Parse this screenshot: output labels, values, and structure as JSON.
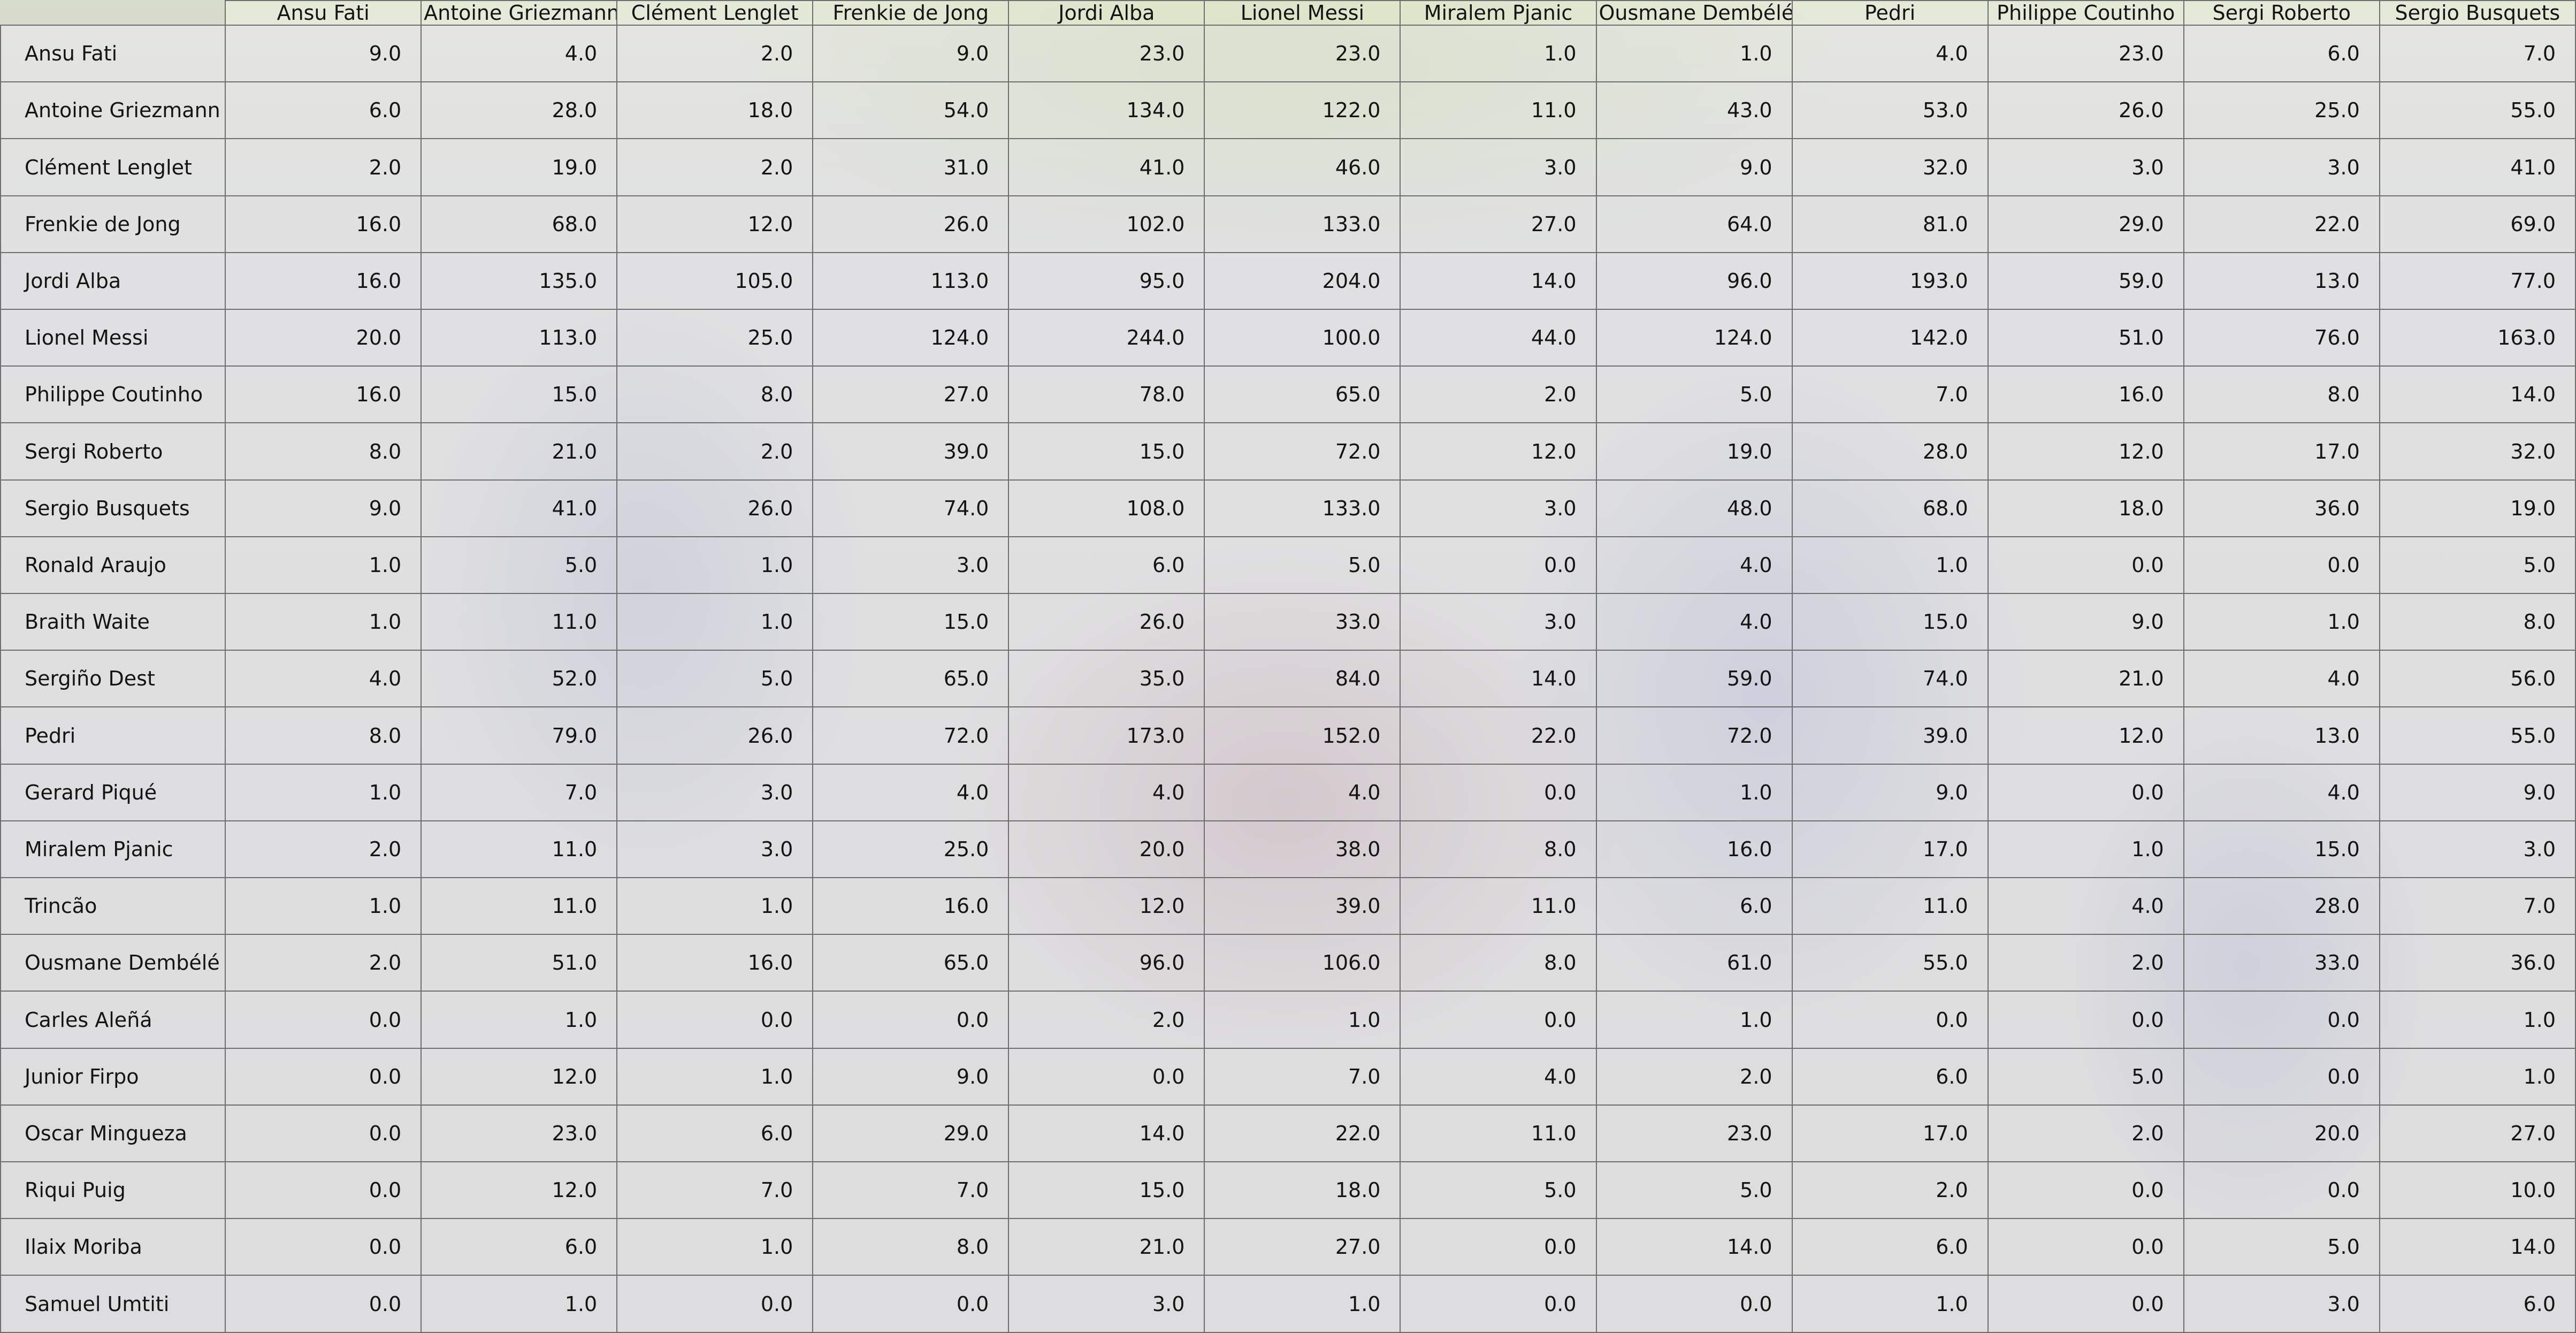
{
  "chart_data": {
    "type": "table",
    "title": "",
    "columns": [
      "Ansu Fati",
      "Antoine Griezmann",
      "Clément Lenglet",
      "Frenkie de Jong",
      "Jordi Alba",
      "Lionel Messi",
      "Miralem Pjanic",
      "Ousmane Dembélé",
      "Pedri",
      "Philippe Coutinho",
      "Sergi Roberto",
      "Sergio Busquets"
    ],
    "rows": [
      {
        "label": "Ansu Fati",
        "values": [
          "9.0",
          "4.0",
          "2.0",
          "9.0",
          "23.0",
          "23.0",
          "1.0",
          "1.0",
          "4.0",
          "23.0",
          "6.0",
          "7.0"
        ]
      },
      {
        "label": "Antoine Griezmann",
        "values": [
          "6.0",
          "28.0",
          "18.0",
          "54.0",
          "134.0",
          "122.0",
          "11.0",
          "43.0",
          "53.0",
          "26.0",
          "25.0",
          "55.0"
        ]
      },
      {
        "label": "Clément Lenglet",
        "values": [
          "2.0",
          "19.0",
          "2.0",
          "31.0",
          "41.0",
          "46.0",
          "3.0",
          "9.0",
          "32.0",
          "3.0",
          "3.0",
          "41.0"
        ]
      },
      {
        "label": "Frenkie de Jong",
        "values": [
          "16.0",
          "68.0",
          "12.0",
          "26.0",
          "102.0",
          "133.0",
          "27.0",
          "64.0",
          "81.0",
          "29.0",
          "22.0",
          "69.0"
        ]
      },
      {
        "label": "Jordi Alba",
        "values": [
          "16.0",
          "135.0",
          "105.0",
          "113.0",
          "95.0",
          "204.0",
          "14.0",
          "96.0",
          "193.0",
          "59.0",
          "13.0",
          "77.0"
        ]
      },
      {
        "label": "Lionel Messi",
        "values": [
          "20.0",
          "113.0",
          "25.0",
          "124.0",
          "244.0",
          "100.0",
          "44.0",
          "124.0",
          "142.0",
          "51.0",
          "76.0",
          "163.0"
        ]
      },
      {
        "label": "Philippe Coutinho",
        "values": [
          "16.0",
          "15.0",
          "8.0",
          "27.0",
          "78.0",
          "65.0",
          "2.0",
          "5.0",
          "7.0",
          "16.0",
          "8.0",
          "14.0"
        ]
      },
      {
        "label": "Sergi Roberto",
        "values": [
          "8.0",
          "21.0",
          "2.0",
          "39.0",
          "15.0",
          "72.0",
          "12.0",
          "19.0",
          "28.0",
          "12.0",
          "17.0",
          "32.0"
        ]
      },
      {
        "label": "Sergio Busquets",
        "values": [
          "9.0",
          "41.0",
          "26.0",
          "74.0",
          "108.0",
          "133.0",
          "3.0",
          "48.0",
          "68.0",
          "18.0",
          "36.0",
          "19.0"
        ]
      },
      {
        "label": "Ronald Araujo",
        "values": [
          "1.0",
          "5.0",
          "1.0",
          "3.0",
          "6.0",
          "5.0",
          "0.0",
          "4.0",
          "1.0",
          "0.0",
          "0.0",
          "5.0"
        ]
      },
      {
        "label": "Braith Waite",
        "values": [
          "1.0",
          "11.0",
          "1.0",
          "15.0",
          "26.0",
          "33.0",
          "3.0",
          "4.0",
          "15.0",
          "9.0",
          "1.0",
          "8.0"
        ]
      },
      {
        "label": "Sergiño Dest",
        "values": [
          "4.0",
          "52.0",
          "5.0",
          "65.0",
          "35.0",
          "84.0",
          "14.0",
          "59.0",
          "74.0",
          "21.0",
          "4.0",
          "56.0"
        ]
      },
      {
        "label": "Pedri",
        "values": [
          "8.0",
          "79.0",
          "26.0",
          "72.0",
          "173.0",
          "152.0",
          "22.0",
          "72.0",
          "39.0",
          "12.0",
          "13.0",
          "55.0"
        ]
      },
      {
        "label": "Gerard Piqué",
        "values": [
          "1.0",
          "7.0",
          "3.0",
          "4.0",
          "4.0",
          "4.0",
          "0.0",
          "1.0",
          "9.0",
          "0.0",
          "4.0",
          "9.0"
        ]
      },
      {
        "label": "Miralem Pjanic",
        "values": [
          "2.0",
          "11.0",
          "3.0",
          "25.0",
          "20.0",
          "38.0",
          "8.0",
          "16.0",
          "17.0",
          "1.0",
          "15.0",
          "3.0"
        ]
      },
      {
        "label": "Trincão",
        "values": [
          "1.0",
          "11.0",
          "1.0",
          "16.0",
          "12.0",
          "39.0",
          "11.0",
          "6.0",
          "11.0",
          "4.0",
          "28.0",
          "7.0"
        ]
      },
      {
        "label": "Ousmane Dembélé",
        "values": [
          "2.0",
          "51.0",
          "16.0",
          "65.0",
          "96.0",
          "106.0",
          "8.0",
          "61.0",
          "55.0",
          "2.0",
          "33.0",
          "36.0"
        ]
      },
      {
        "label": "Carles Aleñá",
        "values": [
          "0.0",
          "1.0",
          "0.0",
          "0.0",
          "2.0",
          "1.0",
          "0.0",
          "1.0",
          "0.0",
          "0.0",
          "0.0",
          "1.0"
        ]
      },
      {
        "label": "Junior Firpo",
        "values": [
          "0.0",
          "12.0",
          "1.0",
          "9.0",
          "0.0",
          "7.0",
          "4.0",
          "2.0",
          "6.0",
          "5.0",
          "0.0",
          "1.0"
        ]
      },
      {
        "label": "Oscar Mingueza",
        "values": [
          "0.0",
          "23.0",
          "6.0",
          "29.0",
          "14.0",
          "22.0",
          "11.0",
          "23.0",
          "17.0",
          "2.0",
          "20.0",
          "27.0"
        ]
      },
      {
        "label": "Riqui Puig",
        "values": [
          "0.0",
          "12.0",
          "7.0",
          "7.0",
          "15.0",
          "18.0",
          "5.0",
          "5.0",
          "2.0",
          "0.0",
          "0.0",
          "10.0"
        ]
      },
      {
        "label": "Ilaix Moriba",
        "values": [
          "0.0",
          "6.0",
          "1.0",
          "8.0",
          "21.0",
          "27.0",
          "0.0",
          "14.0",
          "6.0",
          "0.0",
          "5.0",
          "14.0"
        ]
      },
      {
        "label": "Samuel Umtiti",
        "values": [
          "0.0",
          "1.0",
          "0.0",
          "0.0",
          "3.0",
          "1.0",
          "0.0",
          "0.0",
          "1.0",
          "0.0",
          "3.0",
          "6.0"
        ]
      }
    ]
  },
  "background": {
    "description_colors": {
      "base": "#c9c6c8",
      "pitch": "#aac878",
      "blue": "#4a5ab4",
      "garnet": "#782846"
    }
  }
}
